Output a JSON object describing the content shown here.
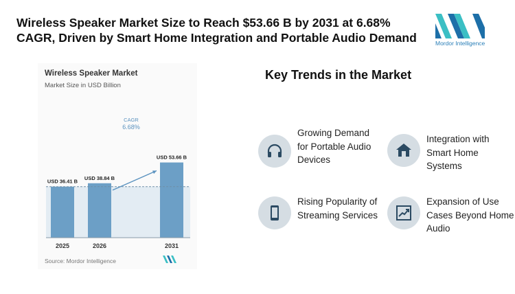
{
  "header": {
    "title": "Wireless Speaker Market Size to Reach $53.66 B by 2031 at 6.68% CAGR, Driven by Smart Home Integration and Portable Audio Demand"
  },
  "logo": {
    "text": "Mordor Intelligence",
    "colors": {
      "teal": "#3bbfc4",
      "blue": "#1d6fa8"
    }
  },
  "chart_data": {
    "type": "bar",
    "title": "Wireless Speaker Market",
    "subtitle": "Market Size in USD Billion",
    "categories": [
      "2025",
      "2026",
      "2031"
    ],
    "values": [
      36.41,
      38.84,
      53.66
    ],
    "value_labels": [
      "USD 36.41 B",
      "USD 38.84 B",
      "USD 53.66 B"
    ],
    "cagr_label": "CAGR",
    "cagr_value": "6.68%",
    "source": "Source: Mordor Intelligence",
    "ylim": [
      0,
      60
    ],
    "grid": false,
    "colors": {
      "bar": "#6c9fc6",
      "shade": "#e3ecf3",
      "arrow": "#5a92bf",
      "cagr_text": "#5a92bf"
    }
  },
  "trends": {
    "title": "Key Trends in the Market",
    "items": [
      {
        "label": "Growing Demand for Portable Audio Devices",
        "icon": "headphones-icon"
      },
      {
        "label": "Integration with Smart Home Systems",
        "icon": "home-icon"
      },
      {
        "label": "Rising Popularity of Streaming Services",
        "icon": "smartphone-icon"
      },
      {
        "label": "Expansion of Use Cases Beyond Home Audio",
        "icon": "trend-chart-icon"
      }
    ]
  }
}
